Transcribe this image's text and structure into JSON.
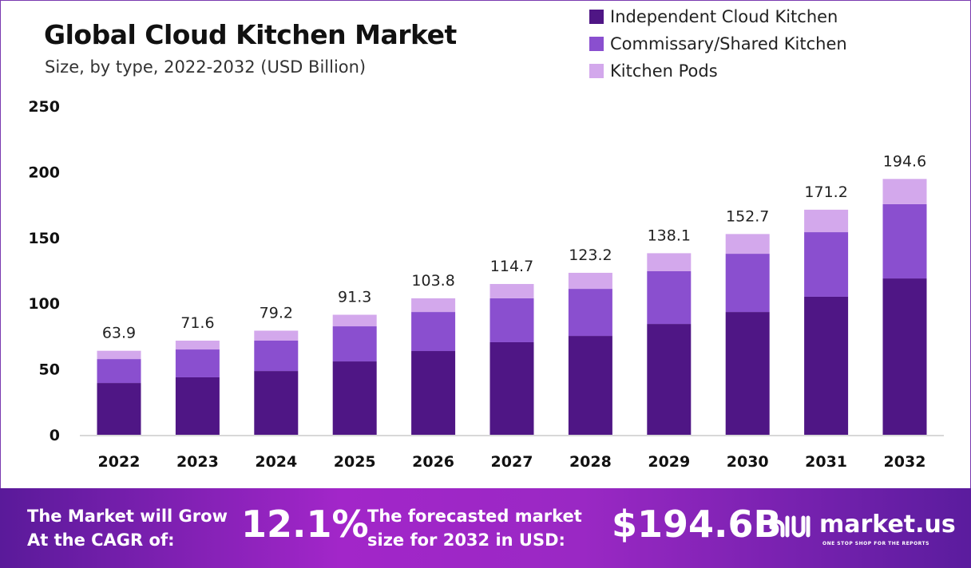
{
  "chart_data": {
    "type": "bar",
    "stacked": true,
    "title": "Global Cloud Kitchen Market",
    "subtitle": "Size, by type, 2022-2032 (USD Billion)",
    "categories": [
      "2022",
      "2023",
      "2024",
      "2025",
      "2026",
      "2027",
      "2028",
      "2029",
      "2030",
      "2031",
      "2032"
    ],
    "series": [
      {
        "name": "Independent Cloud Kitchen",
        "color": "#4f1685",
        "values": [
          39.4,
          43.7,
          48.5,
          55.8,
          63.7,
          70.4,
          75.2,
          84.3,
          93.4,
          105.0,
          118.9
        ]
      },
      {
        "name": "Commissary/Shared Kitchen",
        "color": "#8a4fcf",
        "values": [
          18.2,
          21.2,
          23.1,
          26.7,
          29.7,
          33.4,
          35.8,
          40.1,
          44.3,
          49.1,
          56.5
        ]
      },
      {
        "name": "Kitchen Pods",
        "color": "#d3a8ec",
        "values": [
          6.3,
          6.7,
          7.6,
          8.8,
          10.4,
          10.9,
          12.2,
          13.7,
          15.0,
          17.1,
          19.2
        ]
      }
    ],
    "totals": [
      "63.9",
      "71.6",
      "79.2",
      "91.3",
      "103.8",
      "114.7",
      "123.2",
      "138.1",
      "152.7",
      "171.2",
      "194.6"
    ],
    "yticks": [
      "0",
      "50",
      "100",
      "150",
      "200",
      "250"
    ],
    "ylim": [
      0,
      250
    ],
    "grid": false,
    "legend": "top-right"
  },
  "footer": {
    "cagr_label_1": "The Market will Grow",
    "cagr_label_2": "At the CAGR of:",
    "cagr_value": "12.1%",
    "forecast_label_1": "The forecasted market",
    "forecast_label_2": "size for 2032 in USD:",
    "forecast_value": "$194.6B",
    "brand": "market.us",
    "tagline": "ONE STOP SHOP FOR THE REPORTS"
  }
}
